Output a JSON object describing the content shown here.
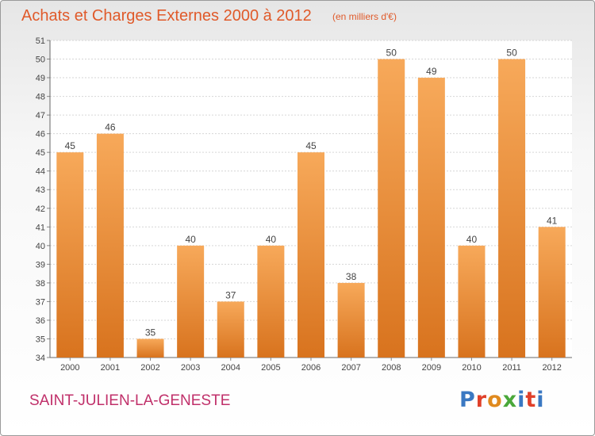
{
  "header": {
    "title": "Achats et Charges Externes 2000 à 2012",
    "subtitle": "(en milliers d'€)"
  },
  "footer": {
    "commune": "SAINT-JULIEN-LA-GENESTE",
    "logo": "Proxiti"
  },
  "colors": {
    "title": "#e05a2a",
    "commune": "#c0306a",
    "bar_top": "#f7a95a",
    "bar_bottom": "#d8731e",
    "logo_letters": [
      "#3a78c2",
      "#e0402a",
      "#e08a1e",
      "#4aa83a",
      "#3a78c2",
      "#e0402a",
      "#3a78c2"
    ]
  },
  "chart_data": {
    "type": "bar",
    "categories": [
      "2000",
      "2001",
      "2002",
      "2003",
      "2004",
      "2005",
      "2006",
      "2007",
      "2008",
      "2009",
      "2010",
      "2011",
      "2012"
    ],
    "values": [
      45,
      46,
      35,
      40,
      37,
      40,
      45,
      38,
      50,
      49,
      40,
      50,
      41
    ],
    "ylim": [
      34,
      51
    ],
    "yticks": [
      34,
      35,
      36,
      37,
      38,
      39,
      40,
      41,
      42,
      43,
      44,
      45,
      46,
      47,
      48,
      49,
      50,
      51
    ],
    "grid": true,
    "data_labels": true
  }
}
